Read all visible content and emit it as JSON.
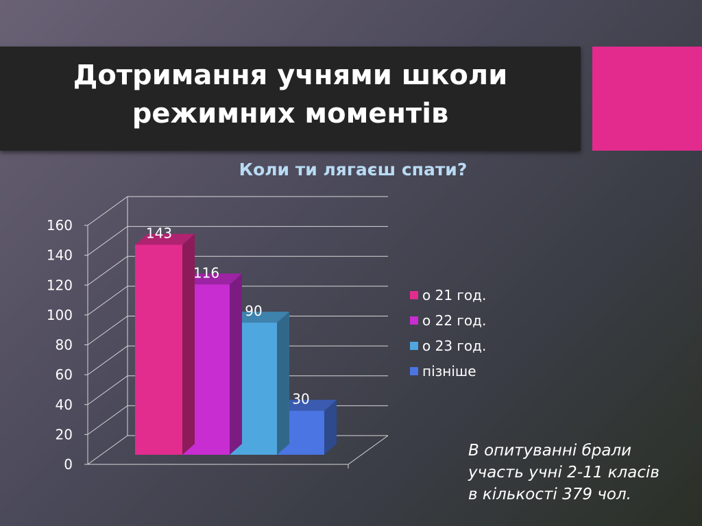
{
  "slide": {
    "title_line1": "Дотримання учнями школи",
    "title_line2": "режимних моментів",
    "note_line1": "В опитуванні брали",
    "note_line2": "участь учні 2-11 класів",
    "note_line3": "в кількості 379 чол.",
    "accent_color": "#e32b8e"
  },
  "chart_data": {
    "type": "bar",
    "title": "Коли ти лягаєш спати?",
    "xlabel": "",
    "ylabel": "",
    "ylim": [
      0,
      160
    ],
    "yticks": [
      "0",
      "20",
      "40",
      "60",
      "80",
      "100",
      "120",
      "140",
      "160"
    ],
    "series": [
      {
        "name": "о 21 год.",
        "values": [
          143
        ],
        "color": "#e22d8f"
      },
      {
        "name": "о 22 год.",
        "values": [
          116
        ],
        "color": "#c82dd1"
      },
      {
        "name": "о 23 год.",
        "values": [
          90
        ],
        "color": "#4fa7df"
      },
      {
        "name": "пізніше",
        "values": [
          30
        ],
        "color": "#4a75e2"
      }
    ],
    "data_labels": [
      "143",
      "116",
      "90",
      "30"
    ],
    "grid": true,
    "legend": "right"
  }
}
